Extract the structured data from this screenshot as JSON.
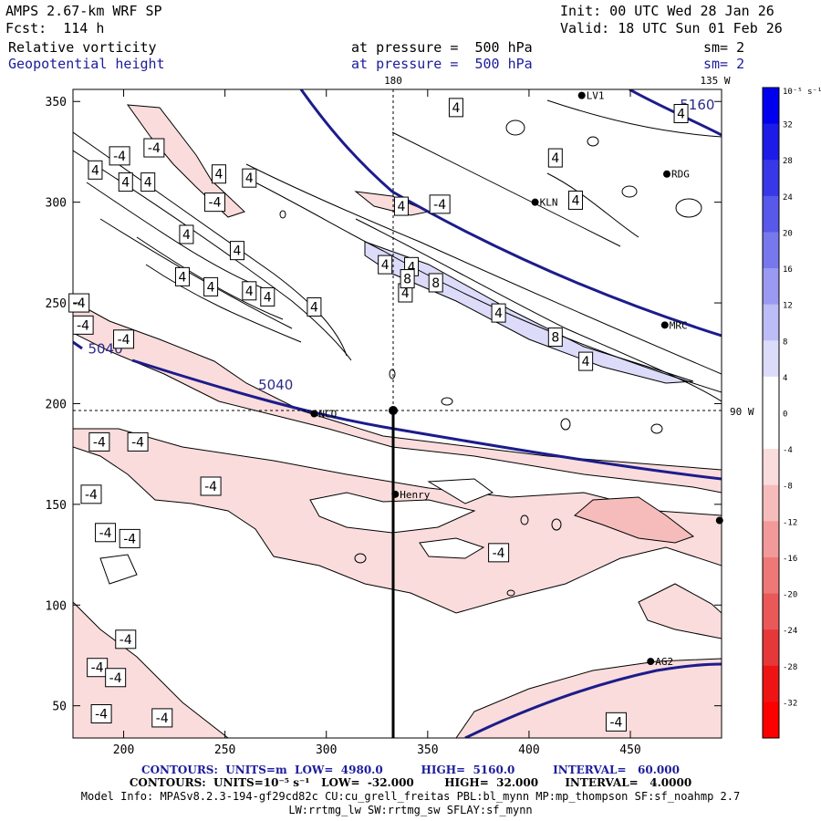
{
  "header": {
    "model_name": "AMPS 2.67-km WRF SP",
    "forecast": "Fcst:  114 h",
    "init": "Init: 00 UTC Wed 28 Jan 26",
    "valid": "Valid: 18 UTC Sun 01 Feb 26",
    "field1_name": "Relative vorticity",
    "field1_level": "at pressure =  500 hPa",
    "field1_smooth": "sm= 2",
    "field2_name": "Geopotential height",
    "field2_level": "at pressure =  500 hPa",
    "field2_smooth": "sm= 2"
  },
  "map_labels": {
    "lon_180": "180",
    "lon_135w": "135 W",
    "lon_90w": "90 W"
  },
  "axes": {
    "x_ticks": [
      "200",
      "250",
      "300",
      "350",
      "400",
      "450"
    ],
    "y_ticks": [
      "50",
      "100",
      "150",
      "200",
      "250",
      "300",
      "350"
    ],
    "x_range": [
      175,
      495
    ],
    "y_range": [
      34,
      356
    ]
  },
  "colorbar": {
    "unit_label": "10⁻⁵ s⁻¹",
    "ticks": [
      "32",
      "28",
      "24",
      "20",
      "16",
      "12",
      "8",
      "4",
      "0",
      "-4",
      "-8",
      "-12",
      "-16",
      "-20",
      "-24",
      "-28",
      "-32"
    ],
    "colors_top_to_bottom": [
      "#0000ee",
      "#1c1ce6",
      "#3838e8",
      "#5858ea",
      "#7878ee",
      "#9a9af2",
      "#bcbcf6",
      "#dcdcfa",
      "#ffffff",
      "#ffffff",
      "#fadcdc",
      "#f6bcbc",
      "#f29a9a",
      "#ee7878",
      "#ea5858",
      "#e63838",
      "#ee1414",
      "#ff0000"
    ]
  },
  "stations": [
    {
      "name": "LV1",
      "x": 426,
      "y": 353
    },
    {
      "name": "RDG",
      "x": 468,
      "y": 314
    },
    {
      "name": "KLN",
      "x": 403,
      "y": 300
    },
    {
      "name": "MRC",
      "x": 467,
      "y": 239
    },
    {
      "name": "NCO",
      "x": 294,
      "y": 195
    },
    {
      "name": "Henry",
      "x": 334,
      "y": 155
    },
    {
      "name": "AG2",
      "x": 460,
      "y": 72
    },
    {
      "name": "",
      "x": 494,
      "y": 142
    }
  ],
  "height_contour_labels": [
    {
      "text": "5040",
      "x": 191,
      "y": 225
    },
    {
      "text": "5040",
      "x": 275,
      "y": 207
    },
    {
      "text": "5160",
      "x": 483,
      "y": 346
    }
  ],
  "vorticity_labels": [
    {
      "text": "-4",
      "x": 198,
      "y": 323
    },
    {
      "text": "-4",
      "x": 215,
      "y": 327
    },
    {
      "text": "4",
      "x": 186,
      "y": 316
    },
    {
      "text": "4",
      "x": 201,
      "y": 310
    },
    {
      "text": "4",
      "x": 212,
      "y": 310
    },
    {
      "text": "4",
      "x": 247,
      "y": 314
    },
    {
      "text": "4",
      "x": 262,
      "y": 312
    },
    {
      "text": "-4",
      "x": 245,
      "y": 300
    },
    {
      "text": "4",
      "x": 231,
      "y": 284
    },
    {
      "text": "4",
      "x": 256,
      "y": 276
    },
    {
      "text": "4",
      "x": 229,
      "y": 263
    },
    {
      "text": "4",
      "x": 243,
      "y": 258
    },
    {
      "text": "4",
      "x": 262,
      "y": 256
    },
    {
      "text": "4",
      "x": 271,
      "y": 253
    },
    {
      "text": "4",
      "x": 294,
      "y": 248
    },
    {
      "text": "4",
      "x": 339,
      "y": 255
    },
    {
      "text": "-4",
      "x": 178,
      "y": 250
    },
    {
      "text": "-4",
      "x": 180,
      "y": 239
    },
    {
      "text": "-4",
      "x": 200,
      "y": 232
    },
    {
      "text": "-4",
      "x": 356,
      "y": 299
    },
    {
      "text": "4",
      "x": 337,
      "y": 298
    },
    {
      "text": "4",
      "x": 329,
      "y": 269
    },
    {
      "text": "4",
      "x": 342,
      "y": 268
    },
    {
      "text": "8",
      "x": 340,
      "y": 262
    },
    {
      "text": "8",
      "x": 354,
      "y": 260
    },
    {
      "text": "4",
      "x": 364,
      "y": 347
    },
    {
      "text": "4",
      "x": 413,
      "y": 322
    },
    {
      "text": "4",
      "x": 423,
      "y": 301
    },
    {
      "text": "4",
      "x": 475,
      "y": 344
    },
    {
      "text": "4",
      "x": 385,
      "y": 245
    },
    {
      "text": "8",
      "x": 413,
      "y": 233
    },
    {
      "text": "4",
      "x": 428,
      "y": 221
    },
    {
      "text": "-4",
      "x": 188,
      "y": 181
    },
    {
      "text": "-4",
      "x": 207,
      "y": 181
    },
    {
      "text": "-4",
      "x": 243,
      "y": 159
    },
    {
      "text": "-4",
      "x": 184,
      "y": 155
    },
    {
      "text": "-4",
      "x": 203,
      "y": 133
    },
    {
      "text": "-4",
      "x": 191,
      "y": 136
    },
    {
      "text": "-4",
      "x": 385,
      "y": 126
    },
    {
      "text": "-4",
      "x": 201,
      "y": 83
    },
    {
      "text": "-4",
      "x": 187,
      "y": 69
    },
    {
      "text": "-4",
      "x": 196,
      "y": 64
    },
    {
      "text": "-4",
      "x": 189,
      "y": 46
    },
    {
      "text": "-4",
      "x": 219,
      "y": 44
    },
    {
      "text": "-4",
      "x": 443,
      "y": 42
    }
  ],
  "footer": {
    "line1": "CONTOURS:  UNITS=m  LOW=  4980.0          HIGH=  5160.0          INTERVAL=   60.000",
    "line2": "CONTOURS:  UNITS=10⁻⁵ s⁻¹   LOW=  -32.000        HIGH=  32.000       INTERVAL=   4.0000",
    "line3": "Model Info: MPASv8.2.3-194-gf29cd82c CU:cu_grell_freitas PBL:bl_mynn MP:mp_thompson SF:sf_noahmp 2.7",
    "line4": "LW:rrtmg_lw SW:rrtmg_sw SFLAY:sf_mynn"
  }
}
